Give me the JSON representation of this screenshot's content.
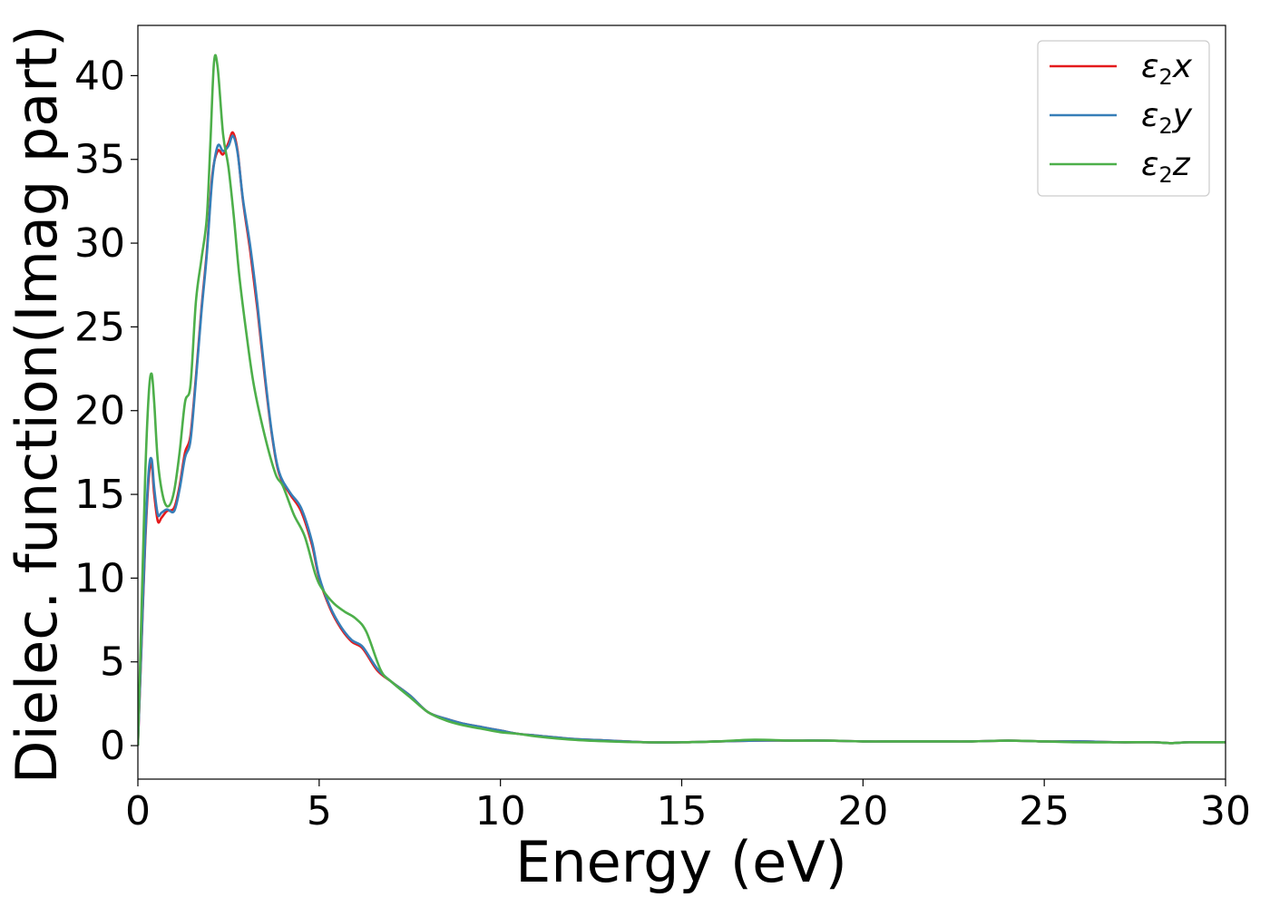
{
  "chart_data": {
    "type": "line",
    "title": "",
    "xlabel": "Energy (eV)",
    "ylabel": "Dielec. function(Imag part)",
    "xlim": [
      0,
      30
    ],
    "ylim": [
      -2,
      43
    ],
    "xticks": [
      0,
      5,
      10,
      15,
      20,
      25,
      30
    ],
    "yticks": [
      0,
      5,
      10,
      15,
      20,
      25,
      30,
      35,
      40
    ],
    "grid": false,
    "legend_position": "top-right",
    "series": [
      {
        "name": "ε2x",
        "legend": {
          "base": "ε",
          "sub": "2",
          "var": "x"
        },
        "color": "#e41a1c",
        "x": [
          0,
          0.1,
          0.2,
          0.3,
          0.38,
          0.45,
          0.55,
          0.65,
          0.8,
          1.0,
          1.15,
          1.3,
          1.45,
          1.6,
          1.75,
          1.9,
          2.05,
          2.2,
          2.35,
          2.5,
          2.62,
          2.75,
          2.9,
          3.1,
          3.3,
          3.5,
          3.7,
          3.9,
          4.2,
          4.5,
          4.8,
          5.0,
          5.3,
          5.6,
          5.9,
          6.2,
          6.6,
          7.0,
          7.5,
          8.0,
          8.5,
          9.0,
          9.5,
          10.0,
          10.5,
          11.0,
          12.0,
          13.0,
          14.0,
          15.0,
          16.0,
          17.0,
          18.0,
          19.0,
          20.0,
          21.0,
          22.0,
          23.0,
          24.0,
          25.0,
          26.0,
          27.0,
          28.0,
          28.5,
          29.0,
          30.0
        ],
        "y": [
          0,
          6,
          12,
          16,
          16.8,
          15,
          13.4,
          13.6,
          14.0,
          14.2,
          15.5,
          17.5,
          18.5,
          22,
          26,
          29.5,
          34,
          35.5,
          35.3,
          36.0,
          36.6,
          35.5,
          32.5,
          29.5,
          26,
          22,
          18.5,
          16.2,
          15,
          14,
          12,
          10,
          8.2,
          7,
          6.2,
          5.8,
          4.5,
          3.8,
          3.0,
          2.0,
          1.6,
          1.3,
          1.1,
          0.9,
          0.7,
          0.6,
          0.4,
          0.3,
          0.2,
          0.2,
          0.25,
          0.3,
          0.3,
          0.3,
          0.25,
          0.25,
          0.25,
          0.25,
          0.3,
          0.25,
          0.25,
          0.2,
          0.2,
          0.15,
          0.2,
          0.2
        ]
      },
      {
        "name": "ε2y",
        "legend": {
          "base": "ε",
          "sub": "2",
          "var": "y"
        },
        "color": "#377eb8",
        "x": [
          0,
          0.1,
          0.2,
          0.3,
          0.38,
          0.45,
          0.55,
          0.65,
          0.8,
          1.0,
          1.15,
          1.3,
          1.45,
          1.6,
          1.75,
          1.9,
          2.05,
          2.2,
          2.35,
          2.5,
          2.62,
          2.75,
          2.9,
          3.1,
          3.3,
          3.5,
          3.7,
          3.9,
          4.2,
          4.5,
          4.8,
          5.0,
          5.3,
          5.6,
          5.9,
          6.2,
          6.6,
          7.0,
          7.5,
          8.0,
          8.5,
          9.0,
          9.5,
          10.0,
          10.5,
          11.0,
          12.0,
          13.0,
          14.0,
          15.0,
          16.0,
          17.0,
          18.0,
          19.0,
          20.0,
          21.0,
          22.0,
          23.0,
          24.0,
          25.0,
          26.0,
          27.0,
          28.0,
          28.5,
          29.0,
          30.0
        ],
        "y": [
          0,
          6.2,
          12.3,
          16.4,
          17.1,
          15.4,
          13.8,
          13.9,
          14.1,
          14.0,
          15.3,
          17.2,
          18.2,
          21.8,
          25.8,
          29.3,
          33.8,
          35.8,
          35.5,
          35.8,
          36.4,
          35.4,
          32.6,
          29.8,
          26.3,
          22.2,
          18.6,
          16.3,
          15.1,
          14.2,
          12.2,
          10.1,
          8.3,
          7.1,
          6.3,
          5.9,
          4.6,
          3.8,
          3.0,
          2.0,
          1.6,
          1.3,
          1.1,
          0.9,
          0.7,
          0.6,
          0.4,
          0.3,
          0.2,
          0.2,
          0.25,
          0.3,
          0.3,
          0.3,
          0.25,
          0.25,
          0.25,
          0.25,
          0.3,
          0.25,
          0.25,
          0.2,
          0.2,
          0.15,
          0.2,
          0.2
        ]
      },
      {
        "name": "ε2z",
        "legend": {
          "base": "ε",
          "sub": "2",
          "var": "z"
        },
        "color": "#4daf4a",
        "x": [
          0,
          0.1,
          0.2,
          0.3,
          0.38,
          0.45,
          0.55,
          0.7,
          0.85,
          1.0,
          1.15,
          1.3,
          1.45,
          1.6,
          1.75,
          1.9,
          2.0,
          2.1,
          2.2,
          2.35,
          2.5,
          2.65,
          2.8,
          3.0,
          3.2,
          3.5,
          3.8,
          4.0,
          4.3,
          4.6,
          4.9,
          5.1,
          5.4,
          5.7,
          6.0,
          6.3,
          6.7,
          7.0,
          7.5,
          8.0,
          8.5,
          9.0,
          9.5,
          10.0,
          10.5,
          11.0,
          12.0,
          13.0,
          14.0,
          15.0,
          16.0,
          17.0,
          18.0,
          19.0,
          20.0,
          21.0,
          22.0,
          23.0,
          24.0,
          25.0,
          26.0,
          27.0,
          28.0,
          28.5,
          29.0,
          30.0
        ],
        "y": [
          0,
          8,
          16,
          21,
          22.2,
          20.5,
          17,
          14.8,
          14.3,
          15.2,
          17.5,
          20.5,
          21.5,
          26.5,
          29,
          31.5,
          36,
          40.8,
          40.5,
          36.5,
          34.5,
          31.5,
          28,
          24.5,
          21.5,
          18.5,
          16.2,
          15.5,
          13.8,
          12.5,
          10.2,
          9.3,
          8.5,
          8.0,
          7.6,
          6.8,
          4.5,
          3.8,
          2.9,
          2.0,
          1.5,
          1.2,
          1.0,
          0.8,
          0.7,
          0.55,
          0.35,
          0.25,
          0.2,
          0.2,
          0.25,
          0.35,
          0.3,
          0.3,
          0.25,
          0.25,
          0.25,
          0.25,
          0.3,
          0.25,
          0.2,
          0.2,
          0.2,
          0.15,
          0.2,
          0.2
        ]
      }
    ]
  }
}
